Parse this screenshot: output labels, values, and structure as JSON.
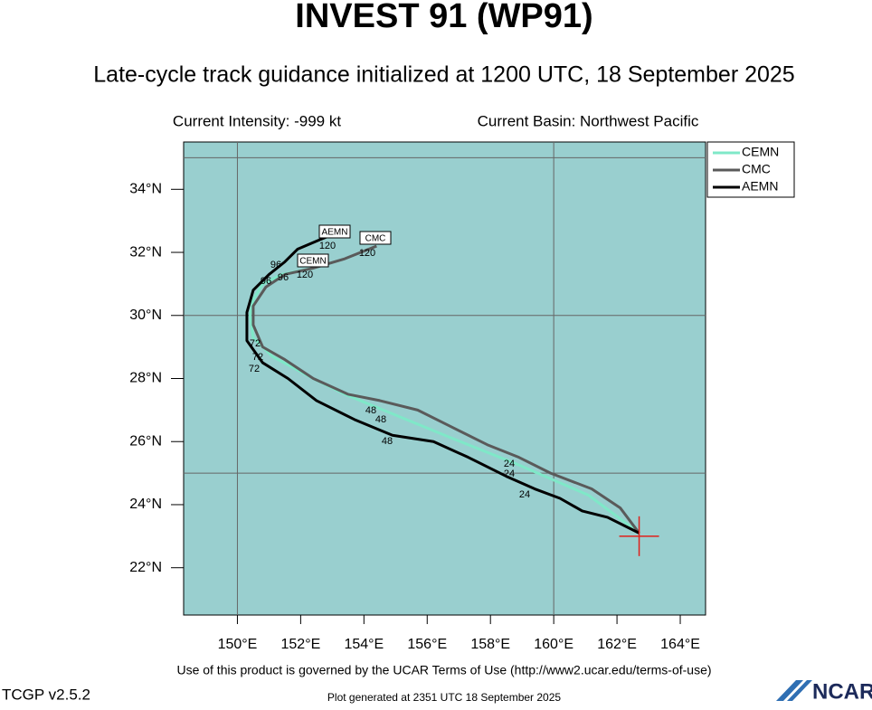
{
  "chart_data": {
    "type": "line",
    "title": "INVEST 91 (WP91)",
    "subtitle": "Late-cycle track guidance initialized at 1200 UTC, 18 September 2025",
    "intensity": "Current Intensity: -999 kt",
    "basin": "Current Basin: Northwest Pacific",
    "footer": "Use of this product is governed by the UCAR Terms of Use (http://www2.ucar.edu/terms-of-use)",
    "version": "TCGP v2.5.2",
    "generated": "Plot generated at 2351 UTC   18 September 2025",
    "logo": "NCAR",
    "xlim": [
      148.3,
      164.8
    ],
    "ylim": [
      20.5,
      35.5
    ],
    "xticks": [
      {
        "value": 150,
        "label": "150°E"
      },
      {
        "value": 152,
        "label": "152°E"
      },
      {
        "value": 154,
        "label": "154°E"
      },
      {
        "value": 156,
        "label": "156°E"
      },
      {
        "value": 158,
        "label": "158°E"
      },
      {
        "value": 160,
        "label": "160°E"
      },
      {
        "value": 162,
        "label": "162°E"
      },
      {
        "value": 164,
        "label": "164°E"
      }
    ],
    "yticks": [
      {
        "value": 22,
        "label": "22°N"
      },
      {
        "value": 24,
        "label": "24°N"
      },
      {
        "value": 26,
        "label": "26°N"
      },
      {
        "value": 28,
        "label": "28°N"
      },
      {
        "value": 30,
        "label": "30°N"
      },
      {
        "value": 32,
        "label": "32°N"
      },
      {
        "value": 34,
        "label": "34°N"
      }
    ],
    "xgrid": [
      150,
      160
    ],
    "ygrid": [
      25,
      30,
      35
    ],
    "legend": "outside-upper-right",
    "current_position": {
      "x": 162.7,
      "y": 23.0
    },
    "series": [
      {
        "name": "CEMN",
        "color": "#7fe8c8",
        "x": [
          162.7,
          161.1,
          158.8,
          156.8,
          155.1,
          153.4,
          152.4,
          151.1,
          150.5,
          150.4,
          150.5,
          150.8,
          151.4,
          152.4
        ],
        "y": [
          23.1,
          24.3,
          25.3,
          26.1,
          26.8,
          27.5,
          28.0,
          28.7,
          29.3,
          30.0,
          30.5,
          31.0,
          31.3,
          31.5
        ]
      },
      {
        "name": "CMC",
        "color": "#5a5a5a",
        "x": [
          162.7,
          162.1,
          161.2,
          159.9,
          158.9,
          157.9,
          156.7,
          155.7,
          154.5,
          153.5,
          152.4,
          151.5,
          150.8,
          150.5,
          150.5,
          150.9,
          151.5,
          152.4,
          153.4,
          154.4
        ],
        "y": [
          23.1,
          23.9,
          24.5,
          25.0,
          25.5,
          25.9,
          26.5,
          27.0,
          27.3,
          27.5,
          28.0,
          28.6,
          29.0,
          29.7,
          30.3,
          30.9,
          31.3,
          31.5,
          31.8,
          32.2
        ]
      },
      {
        "name": "AEMN",
        "color": "#000000",
        "x": [
          162.7,
          161.7,
          160.9,
          160.2,
          159.4,
          158.5,
          157.3,
          156.2,
          154.9,
          153.7,
          152.5,
          151.6,
          150.8,
          150.3,
          150.3,
          150.5,
          151.0,
          151.5,
          151.9,
          152.6,
          153.1
        ],
        "y": [
          23.1,
          23.6,
          23.8,
          24.2,
          24.5,
          24.9,
          25.5,
          26.0,
          26.2,
          26.7,
          27.3,
          28.0,
          28.5,
          29.2,
          30.1,
          30.8,
          31.3,
          31.7,
          32.1,
          32.4,
          32.6
        ]
      }
    ],
    "annotations": [
      "120",
      "96",
      "96",
      "96",
      "120",
      "120",
      "72",
      "72",
      "72",
      "48",
      "48",
      "48",
      "24",
      "24",
      "24"
    ],
    "end_labels": [
      "AEMN",
      "CEMN",
      "CMC"
    ]
  }
}
